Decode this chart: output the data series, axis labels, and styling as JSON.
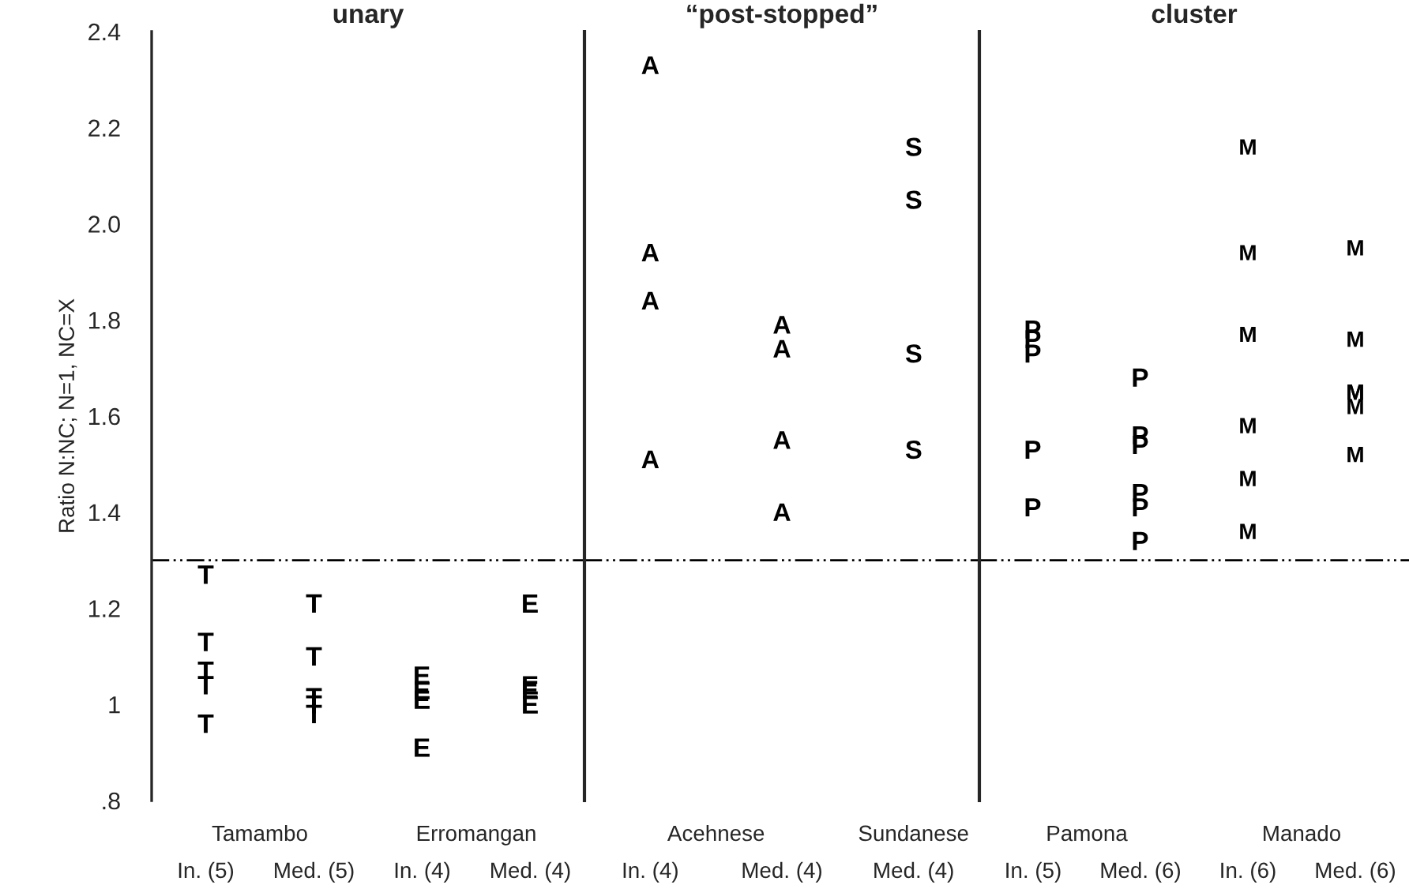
{
  "chart_data": [
    {
      "type": "scatter",
      "title": "unary",
      "ylabel": "Ratio N:NC; N=1, NC=X",
      "categories": [
        "In. (5)",
        "Med. (5)",
        "In. (4)",
        "Med. (4)"
      ],
      "annotations": [
        "Tamambo",
        "Erromangan"
      ],
      "ylim": [
        0.8,
        2.4
      ],
      "yticks": [
        {
          "value": 0.8,
          "label": ".8"
        },
        1,
        1.2,
        1.4,
        1.6,
        1.8,
        {
          "value": 2.0,
          "label": "2.0"
        },
        2.2,
        2.4
      ],
      "grid": false,
      "legend": false,
      "ref_lines": [
        {
          "axis": "y",
          "value": 1.3,
          "color": "#000000",
          "line_style": "dashdot"
        }
      ],
      "series": [
        {
          "color": "#000000",
          "values": [
            1.27,
            1.21,
            null,
            null
          ]
        },
        {
          "color": "#000000",
          "values": [
            1.13,
            1.1,
            null,
            null
          ]
        },
        {
          "color": "#000000",
          "values": [
            1.07,
            1.015,
            null,
            null
          ]
        },
        {
          "color": "#000000",
          "values": [
            1.04,
            1.0,
            null,
            null
          ]
        },
        {
          "color": "#000000",
          "values": [
            0.96,
            0.98,
            null,
            null
          ]
        },
        {
          "color": "#000000",
          "values": [
            null,
            null,
            1.06,
            1.21
          ]
        },
        {
          "color": "#000000",
          "values": [
            null,
            null,
            1.03,
            1.04
          ]
        },
        {
          "color": "#000000",
          "values": [
            null,
            null,
            1.01,
            1.03
          ]
        },
        {
          "color": "#000000",
          "values": [
            null,
            null,
            0.91,
            1.0
          ]
        }
      ]
    },
    {
      "type": "scatter",
      "title": "“post-stopped”",
      "categories": [
        "In. (4)",
        "Med. (4)",
        "Med. (4)"
      ],
      "annotations": [
        "Acehnese",
        "Sundanese"
      ],
      "ylim": [
        0.8,
        2.4
      ],
      "tick_labels": "x",
      "grid": false,
      "legend": false,
      "ref_lines": [
        {
          "axis": "y",
          "value": 1.3,
          "color": "#000000",
          "line_style": "dashdot"
        }
      ],
      "series": [
        {
          "color": "#000000",
          "values": [
            2.33,
            1.79,
            null
          ]
        },
        {
          "color": "#000000",
          "values": [
            1.94,
            1.74,
            null
          ]
        },
        {
          "color": "#000000",
          "values": [
            1.84,
            1.55,
            null
          ]
        },
        {
          "color": "#000000",
          "values": [
            1.51,
            1.4,
            null
          ]
        },
        {
          "color": "#000000",
          "values": [
            null,
            null,
            2.16
          ]
        },
        {
          "color": "#000000",
          "values": [
            null,
            null,
            2.05
          ]
        },
        {
          "color": "#000000",
          "values": [
            null,
            null,
            1.73
          ]
        },
        {
          "color": "#000000",
          "values": [
            null,
            null,
            1.53
          ]
        }
      ]
    },
    {
      "type": "scatter",
      "title": "cluster",
      "categories": [
        "In. (5)",
        "Med. (6)",
        "In. (6)",
        "Med. (6)"
      ],
      "annotations": [
        "Pamona",
        "Manado"
      ],
      "ylim": [
        0.8,
        2.4
      ],
      "tick_labels": "x",
      "grid": false,
      "legend": false,
      "ref_lines": [
        {
          "axis": "y",
          "value": 1.3,
          "color": "#000000",
          "line_style": "dashdot"
        }
      ],
      "series": [
        {
          "color": "#000000",
          "values": [
            1.78,
            1.68,
            null,
            null
          ]
        },
        {
          "color": "#000000",
          "values": [
            1.76,
            1.56,
            null,
            null
          ]
        },
        {
          "color": "#000000",
          "values": [
            1.73,
            1.54,
            null,
            null
          ]
        },
        {
          "color": "#000000",
          "values": [
            1.53,
            1.44,
            null,
            null
          ]
        },
        {
          "color": "#000000",
          "values": [
            1.41,
            1.41,
            null,
            null
          ]
        },
        {
          "color": "#000000",
          "values": [
            null,
            1.34,
            null,
            null
          ]
        },
        {
          "color": "#000000",
          "values": [
            null,
            null,
            2.16,
            1.95
          ]
        },
        {
          "color": "#000000",
          "values": [
            null,
            null,
            1.94,
            1.76
          ]
        },
        {
          "color": "#000000",
          "values": [
            null,
            null,
            1.77,
            1.65
          ]
        },
        {
          "color": "#000000",
          "values": [
            null,
            null,
            1.58,
            1.65
          ]
        },
        {
          "color": "#000000",
          "values": [
            null,
            null,
            1.47,
            1.62
          ]
        },
        {
          "color": "#000000",
          "values": [
            null,
            null,
            1.36,
            1.52
          ]
        }
      ]
    }
  ]
}
